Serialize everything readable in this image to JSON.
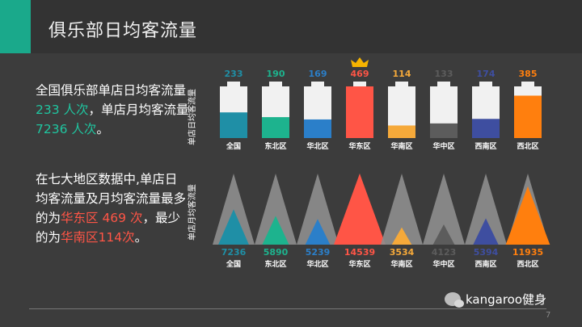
{
  "header": {
    "title": "俱乐部日均客流量"
  },
  "summary": {
    "p1_a": "全国俱乐部单店日均客流量",
    "p1_b": "233 人次",
    "p1_c": "，单店月均客流量",
    "p1_d": "7236 人次",
    "p1_e": "。",
    "p2_a": "在七大地区数据中,单店日",
    "p2_b": "均客流量及月均客流量最多",
    "p2_c": "的为",
    "p2_d": "华东区 469 次",
    "p2_e": "，最少",
    "p2_f": "的为",
    "p2_g": "华南区114次",
    "p2_h": "。"
  },
  "footer": {
    "brand": "kangaroo健身",
    "page": "7"
  },
  "colors": {
    "全国": "#1f8fa6",
    "东北区": "#1db38e",
    "华北区": "#2b7fc9",
    "华东区": "#ff5546",
    "华南区": "#f5a93a",
    "华中区": "#5c5c5c",
    "西南区": "#3e4ea0",
    "西北区": "#ff7f0e"
  },
  "chart_data": [
    {
      "type": "bar",
      "ylabel": "单店日均客流量",
      "categories": [
        "全国",
        "东北区",
        "华北区",
        "华东区",
        "华南区",
        "华中区",
        "西南区",
        "西北区"
      ],
      "values": [
        233,
        190,
        169,
        469,
        114,
        133,
        174,
        385
      ],
      "highlight": "华东区",
      "highlight_icon": "crown-icon"
    },
    {
      "type": "area",
      "ylabel": "单店月均客流量",
      "categories": [
        "全国",
        "东北区",
        "华北区",
        "华东区",
        "华南区",
        "华中区",
        "西南区",
        "西北区"
      ],
      "values": [
        7236,
        5890,
        5239,
        14539,
        3534,
        4123,
        5394,
        11935
      ]
    }
  ]
}
